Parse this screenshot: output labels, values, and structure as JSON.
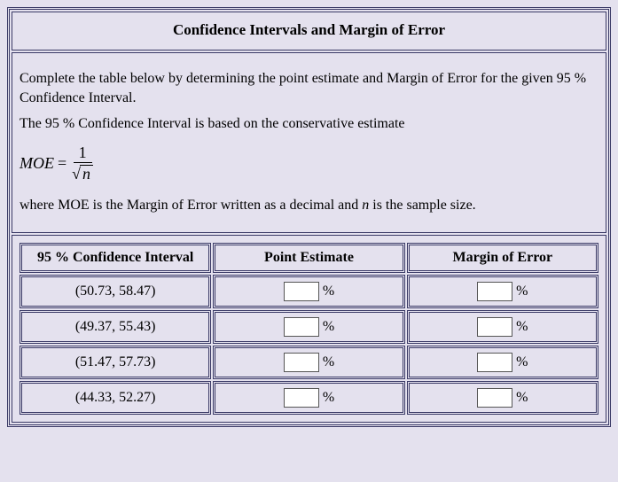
{
  "title": "Confidence Intervals and Margin of Error",
  "instructions_line1": "Complete the table below by determining the point estimate and Margin of Error for the given 95 %  Confidence Interval.",
  "instructions_line2": "The 95 %  Confidence Interval is based on the conservative estimate",
  "formula": {
    "lhs": "MOE",
    "eq": "=",
    "numerator": "1",
    "root_symbol": "√",
    "root_body": "n"
  },
  "instructions_line3_prefix": "where MOE is the Margin of Error written as a decimal and ",
  "instructions_line3_var": "n",
  "instructions_line3_suffix": " is the sample size.",
  "table": {
    "columns": [
      "95 %  Confidence Interval",
      "Point Estimate",
      "Margin of Error"
    ],
    "rows": [
      {
        "ci": "(50.73, 58.47)",
        "pe_value": "",
        "moe_value": ""
      },
      {
        "ci": "(49.37, 55.43)",
        "pe_value": "",
        "moe_value": ""
      },
      {
        "ci": "(51.47, 57.73)",
        "pe_value": "",
        "moe_value": ""
      },
      {
        "ci": "(44.33, 52.27)",
        "pe_value": "",
        "moe_value": ""
      }
    ],
    "unit": "%"
  },
  "style": {
    "background_color": "#e4e1ee",
    "border_color": "#3a3a66",
    "font_family": "Times New Roman",
    "title_fontsize": 17,
    "body_fontsize": 16,
    "input_bg": "#ffffff",
    "input_border": "#555555"
  }
}
